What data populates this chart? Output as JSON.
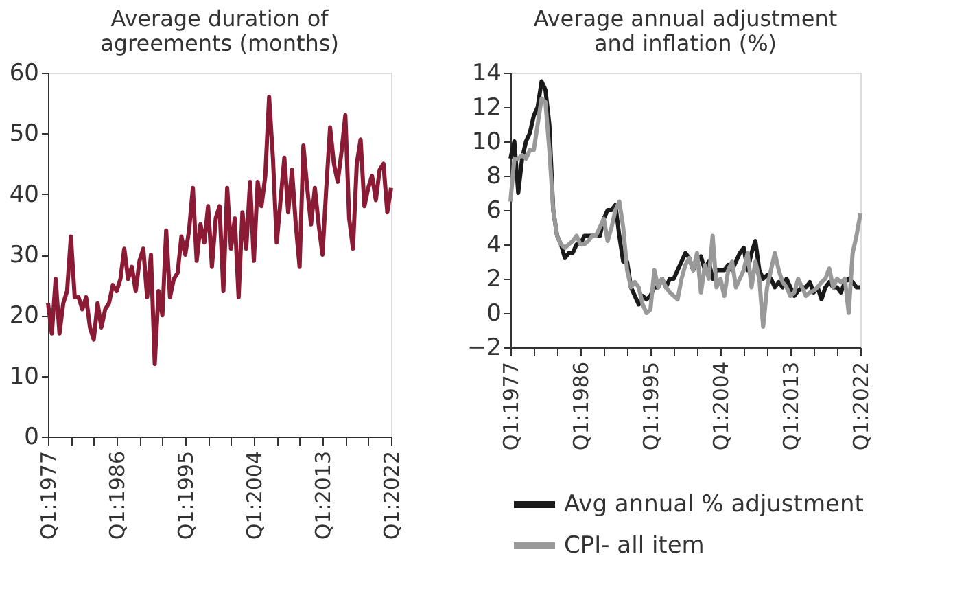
{
  "chart_data": [
    {
      "type": "line",
      "title": "Average duration of\nagreements (months)",
      "categories": [
        "Q1:1977",
        null,
        null,
        null,
        null,
        null,
        null,
        null,
        null,
        null,
        null,
        null,
        null,
        null,
        null,
        null,
        null,
        null,
        "Q1:1986",
        null,
        null,
        null,
        null,
        null,
        null,
        null,
        null,
        null,
        null,
        null,
        null,
        null,
        null,
        null,
        null,
        null,
        "Q1:1995",
        null,
        null,
        null,
        null,
        null,
        null,
        null,
        null,
        null,
        null,
        null,
        null,
        null,
        null,
        null,
        null,
        null,
        "Q1:2004",
        null,
        null,
        null,
        null,
        null,
        null,
        null,
        null,
        null,
        null,
        null,
        null,
        null,
        null,
        null,
        null,
        null,
        "Q1:2013",
        null,
        null,
        null,
        null,
        null,
        null,
        null,
        null,
        null,
        null,
        null,
        null,
        null,
        null,
        null,
        null,
        null,
        "Q1:2022"
      ],
      "series": [
        {
          "color": "#8b1a35",
          "values": [
            22,
            17,
            26,
            17,
            22,
            24,
            33,
            23,
            23,
            21,
            23,
            18,
            16,
            22,
            18,
            21,
            22,
            25,
            24,
            26,
            31,
            26,
            28,
            24,
            29,
            31,
            23,
            30,
            12,
            24,
            20,
            34,
            23,
            26,
            27,
            33,
            30,
            34,
            41,
            29,
            35,
            32,
            38,
            28,
            36,
            38,
            24,
            41,
            31,
            36,
            23,
            37,
            31,
            42,
            29,
            42,
            38,
            43,
            56,
            46,
            32,
            39,
            46,
            37,
            44,
            35,
            28,
            48,
            41,
            35,
            41,
            35,
            30,
            41,
            51,
            45,
            42,
            47,
            53,
            36,
            31,
            45,
            49,
            38,
            41,
            43,
            39,
            44,
            45,
            37,
            41
          ]
        }
      ],
      "ylim": [
        0,
        60
      ],
      "yticks": [
        0,
        10,
        20,
        30,
        40,
        50,
        60
      ]
    },
    {
      "type": "line",
      "title": "Average annual adjustment\nand inflation (%)",
      "categories": [
        "Q1:1977",
        null,
        null,
        null,
        null,
        null,
        null,
        null,
        null,
        null,
        null,
        null,
        null,
        null,
        null,
        null,
        null,
        null,
        "Q1:1986",
        null,
        null,
        null,
        null,
        null,
        null,
        null,
        null,
        null,
        null,
        null,
        null,
        null,
        null,
        null,
        null,
        null,
        "Q1:1995",
        null,
        null,
        null,
        null,
        null,
        null,
        null,
        null,
        null,
        null,
        null,
        null,
        null,
        null,
        null,
        null,
        null,
        "Q1:2004",
        null,
        null,
        null,
        null,
        null,
        null,
        null,
        null,
        null,
        null,
        null,
        null,
        null,
        null,
        null,
        null,
        null,
        "Q1:2013",
        null,
        null,
        null,
        null,
        null,
        null,
        null,
        null,
        null,
        null,
        null,
        null,
        null,
        null,
        null,
        null,
        null,
        "Q1:2022"
      ],
      "series": [
        {
          "name": "Avg annual % adjustment",
          "color": "#1a1a1a",
          "values": [
            9,
            10,
            7,
            9,
            10,
            10.5,
            11.5,
            12,
            13.5,
            13,
            11,
            6,
            4.5,
            4,
            3.2,
            3.5,
            3.5,
            4,
            4,
            4.5,
            4.5,
            4.5,
            4.5,
            4.5,
            5.5,
            6,
            6,
            6.3,
            4.5,
            3,
            3,
            1.5,
            1,
            0.5,
            1,
            0.8,
            1,
            1.5,
            1.5,
            2,
            1.5,
            2,
            2,
            2.5,
            3,
            3.5,
            3.2,
            2.5,
            3,
            3.3,
            2.5,
            3,
            2,
            2.5,
            2.5,
            2.5,
            2.8,
            2.5,
            3,
            3.5,
            3.8,
            2.5,
            3.5,
            4.2,
            2.5,
            2,
            2.2,
            2,
            1.5,
            1.8,
            1.5,
            2,
            1.5,
            1,
            1.3,
            1.5,
            1.5,
            1.8,
            1.2,
            1.5,
            0.8,
            1.5,
            1.8,
            1.5,
            1.5,
            1.2,
            1.8,
            2,
            1.8,
            1.5,
            1.5
          ]
        },
        {
          "name": "CPI- all item",
          "color": "#999999",
          "values": [
            6.5,
            9,
            9,
            9.2,
            9,
            9.5,
            9.5,
            11,
            12.5,
            12.3,
            9.5,
            6,
            4.5,
            4,
            3.8,
            4,
            4.2,
            4.5,
            4,
            4,
            4.2,
            4.5,
            4.5,
            5,
            5.5,
            4.2,
            5,
            6,
            6.5,
            5,
            2.5,
            1.5,
            1.8,
            1.5,
            0.5,
            0,
            0.2,
            2.5,
            1.5,
            2,
            1.5,
            1.2,
            1,
            0.8,
            2,
            2.8,
            3.2,
            2.5,
            3.5,
            1.2,
            2.8,
            2,
            4.5,
            1.5,
            2,
            1,
            2.5,
            3,
            1.5,
            2,
            2.5,
            3.5,
            1.5,
            3,
            2,
            -0.8,
            1.5,
            2.5,
            3.5,
            2.5,
            1.8,
            1.5,
            1,
            1.2,
            2,
            1.5,
            1,
            1.2,
            1.3,
            1.5,
            1.8,
            2,
            2.6,
            1.5,
            2,
            1.8,
            2,
            0,
            3.5,
            4.5,
            5.8
          ]
        }
      ],
      "ylim": [
        -2,
        14
      ],
      "yticks": [
        -2,
        0,
        2,
        4,
        6,
        8,
        10,
        12,
        14
      ],
      "legend": "bottom"
    }
  ]
}
